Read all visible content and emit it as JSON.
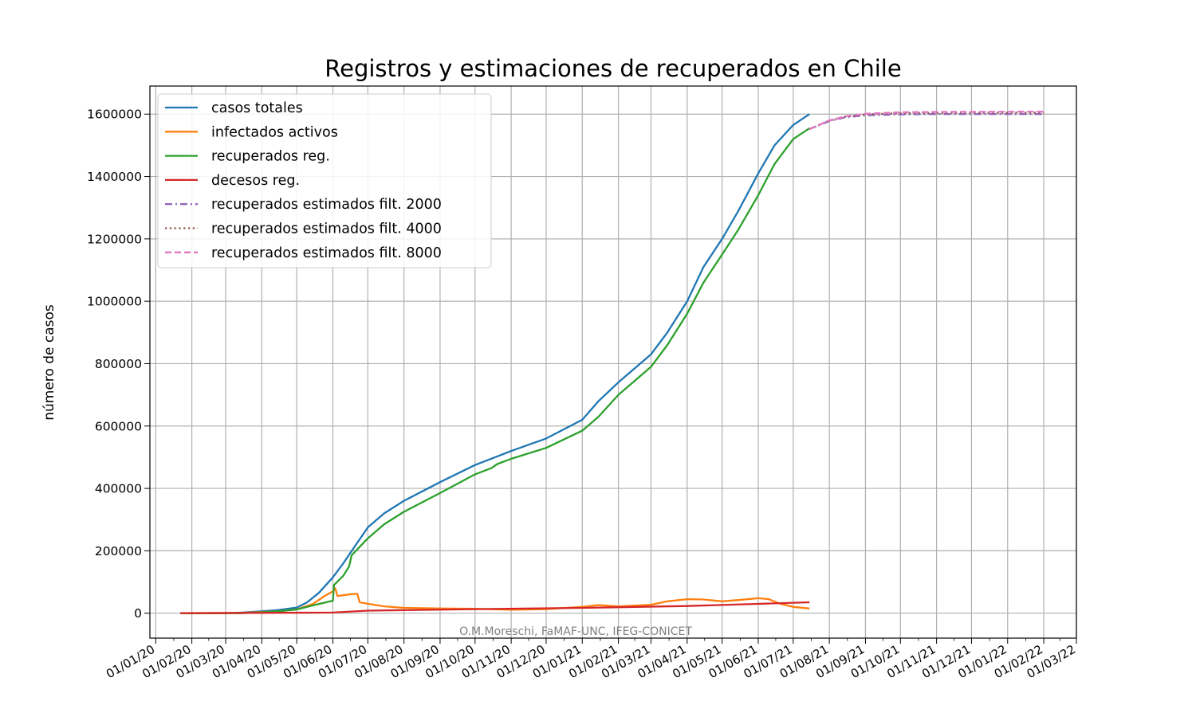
{
  "chart_data": {
    "type": "line",
    "title": "Registros y estimaciones de recuperados en Chile",
    "xlabel": "",
    "ylabel": "número de casos",
    "watermark": "O.M.Moreschi, FaMAF-UNC, IFEG-CONICET",
    "xlim": [
      "2019-12-27",
      "2022-03-01"
    ],
    "ylim": [
      -80000,
      1690000
    ],
    "grid": true,
    "legend_position": "upper-left",
    "x_ticks": [
      "01/01/20",
      "01/02/20",
      "01/03/20",
      "01/04/20",
      "01/05/20",
      "01/06/20",
      "01/07/20",
      "01/08/20",
      "01/09/20",
      "01/10/20",
      "01/11/20",
      "01/12/20",
      "01/01/21",
      "01/02/21",
      "01/03/21",
      "01/04/21",
      "01/05/21",
      "01/06/21",
      "01/07/21",
      "01/08/21",
      "01/09/21",
      "01/10/21",
      "01/11/21",
      "01/12/21",
      "01/01/22",
      "01/02/22",
      "01/03/22"
    ],
    "y_ticks": [
      "0",
      "200000",
      "400000",
      "600000",
      "800000",
      "1000000",
      "1200000",
      "1400000",
      "1600000"
    ],
    "series": [
      {
        "name": "casos totales",
        "color": "#1f77b4",
        "style": "solid",
        "points": [
          [
            "2020-01-22",
            0
          ],
          [
            "2020-03-01",
            0
          ],
          [
            "2020-03-15",
            2000
          ],
          [
            "2020-04-01",
            6000
          ],
          [
            "2020-04-15",
            10000
          ],
          [
            "2020-05-01",
            18000
          ],
          [
            "2020-05-10",
            35000
          ],
          [
            "2020-05-20",
            65000
          ],
          [
            "2020-06-01",
            115000
          ],
          [
            "2020-06-10",
            160000
          ],
          [
            "2020-06-20",
            215000
          ],
          [
            "2020-07-01",
            275000
          ],
          [
            "2020-07-15",
            320000
          ],
          [
            "2020-08-01",
            360000
          ],
          [
            "2020-09-01",
            420000
          ],
          [
            "2020-10-01",
            475000
          ],
          [
            "2020-11-01",
            520000
          ],
          [
            "2020-12-01",
            560000
          ],
          [
            "2021-01-01",
            620000
          ],
          [
            "2021-01-15",
            680000
          ],
          [
            "2021-02-01",
            740000
          ],
          [
            "2021-03-01",
            830000
          ],
          [
            "2021-03-15",
            900000
          ],
          [
            "2021-04-01",
            1000000
          ],
          [
            "2021-04-15",
            1110000
          ],
          [
            "2021-05-01",
            1200000
          ],
          [
            "2021-05-15",
            1290000
          ],
          [
            "2021-06-01",
            1410000
          ],
          [
            "2021-06-15",
            1500000
          ],
          [
            "2021-07-01",
            1565000
          ],
          [
            "2021-07-15",
            1600000
          ]
        ]
      },
      {
        "name": "infectados activos",
        "color": "#ff7f0e",
        "style": "solid",
        "points": [
          [
            "2020-01-22",
            0
          ],
          [
            "2020-03-15",
            1000
          ],
          [
            "2020-04-15",
            6000
          ],
          [
            "2020-05-01",
            12000
          ],
          [
            "2020-05-15",
            30000
          ],
          [
            "2020-05-25",
            55000
          ],
          [
            "2020-06-01",
            70000
          ],
          [
            "2020-06-03",
            80000
          ],
          [
            "2020-06-05",
            55000
          ],
          [
            "2020-06-15",
            60000
          ],
          [
            "2020-06-22",
            62000
          ],
          [
            "2020-06-24",
            35000
          ],
          [
            "2020-07-01",
            30000
          ],
          [
            "2020-07-15",
            22000
          ],
          [
            "2020-08-01",
            17000
          ],
          [
            "2020-09-01",
            15000
          ],
          [
            "2020-10-01",
            14000
          ],
          [
            "2020-11-01",
            11000
          ],
          [
            "2020-12-01",
            13000
          ],
          [
            "2021-01-01",
            20000
          ],
          [
            "2021-01-15",
            26000
          ],
          [
            "2021-02-01",
            22000
          ],
          [
            "2021-03-01",
            27000
          ],
          [
            "2021-03-15",
            38000
          ],
          [
            "2021-04-01",
            45000
          ],
          [
            "2021-04-15",
            44000
          ],
          [
            "2021-05-01",
            38000
          ],
          [
            "2021-05-15",
            42000
          ],
          [
            "2021-06-01",
            48000
          ],
          [
            "2021-06-10",
            45000
          ],
          [
            "2021-06-20",
            30000
          ],
          [
            "2021-07-01",
            20000
          ],
          [
            "2021-07-15",
            15000
          ]
        ]
      },
      {
        "name": "recuperados reg.",
        "color": "#2ca02c",
        "style": "solid",
        "points": [
          [
            "2020-01-22",
            0
          ],
          [
            "2020-03-15",
            0
          ],
          [
            "2020-04-01",
            3000
          ],
          [
            "2020-04-15",
            6000
          ],
          [
            "2020-05-01",
            12000
          ],
          [
            "2020-05-15",
            25000
          ],
          [
            "2020-06-01",
            40000
          ],
          [
            "2020-06-02",
            90000
          ],
          [
            "2020-06-10",
            120000
          ],
          [
            "2020-06-15",
            150000
          ],
          [
            "2020-06-17",
            185000
          ],
          [
            "2020-07-01",
            240000
          ],
          [
            "2020-07-15",
            285000
          ],
          [
            "2020-08-01",
            325000
          ],
          [
            "2020-09-01",
            385000
          ],
          [
            "2020-10-01",
            445000
          ],
          [
            "2020-10-15",
            465000
          ],
          [
            "2020-10-20",
            478000
          ],
          [
            "2020-11-01",
            495000
          ],
          [
            "2020-12-01",
            530000
          ],
          [
            "2021-01-01",
            585000
          ],
          [
            "2021-01-15",
            630000
          ],
          [
            "2021-02-01",
            700000
          ],
          [
            "2021-03-01",
            790000
          ],
          [
            "2021-03-15",
            860000
          ],
          [
            "2021-04-01",
            960000
          ],
          [
            "2021-04-15",
            1060000
          ],
          [
            "2021-05-01",
            1150000
          ],
          [
            "2021-05-15",
            1230000
          ],
          [
            "2021-06-01",
            1340000
          ],
          [
            "2021-06-15",
            1440000
          ],
          [
            "2021-07-01",
            1520000
          ],
          [
            "2021-07-15",
            1555000
          ]
        ]
      },
      {
        "name": "decesos reg.",
        "color": "#d62728",
        "style": "solid",
        "points": [
          [
            "2020-01-22",
            0
          ],
          [
            "2020-06-01",
            2000
          ],
          [
            "2020-07-01",
            8000
          ],
          [
            "2020-10-01",
            13000
          ],
          [
            "2021-01-01",
            17000
          ],
          [
            "2021-04-01",
            23000
          ],
          [
            "2021-07-15",
            35000
          ]
        ]
      },
      {
        "name": "recuperados estimados filt. 2000",
        "color": "#9467bd",
        "style": "dashdot",
        "points": [
          [
            "2021-07-15",
            1552000
          ],
          [
            "2021-08-01",
            1578000
          ],
          [
            "2021-08-15",
            1590000
          ],
          [
            "2021-09-01",
            1596000
          ],
          [
            "2021-10-01",
            1599000
          ],
          [
            "2021-11-01",
            1600000
          ],
          [
            "2022-02-01",
            1600000
          ]
        ]
      },
      {
        "name": "recuperados estimados filt. 4000",
        "color": "#8c564b",
        "style": "dotted",
        "points": [
          [
            "2021-07-15",
            1552000
          ],
          [
            "2021-08-01",
            1579000
          ],
          [
            "2021-08-15",
            1592000
          ],
          [
            "2021-09-01",
            1599000
          ],
          [
            "2021-10-01",
            1603000
          ],
          [
            "2021-11-01",
            1604000
          ],
          [
            "2022-02-01",
            1605000
          ]
        ]
      },
      {
        "name": "recuperados estimados filt. 8000",
        "color": "#e377c2",
        "style": "dashed",
        "points": [
          [
            "2021-07-15",
            1552000
          ],
          [
            "2021-08-01",
            1580000
          ],
          [
            "2021-08-15",
            1593000
          ],
          [
            "2021-09-01",
            1601000
          ],
          [
            "2021-10-01",
            1606000
          ],
          [
            "2021-11-01",
            1607000
          ],
          [
            "2022-02-01",
            1608000
          ]
        ]
      }
    ]
  }
}
